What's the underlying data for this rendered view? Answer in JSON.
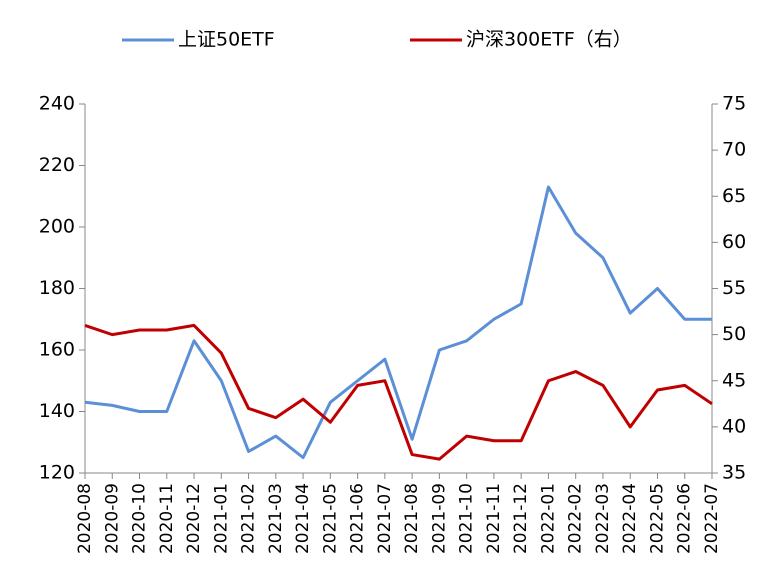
{
  "chart_data": {
    "type": "line",
    "categories": [
      "2020-08",
      "2020-09",
      "2020-10",
      "2020-11",
      "2020-12",
      "2021-01",
      "2021-02",
      "2021-03",
      "2021-04",
      "2021-05",
      "2021-06",
      "2021-07",
      "2021-08",
      "2021-09",
      "2021-10",
      "2021-11",
      "2021-12",
      "2022-01",
      "2022-02",
      "2022-03",
      "2022-04",
      "2022-05",
      "2022-06",
      "2022-07"
    ],
    "series": [
      {
        "name": "上证50ETF",
        "color": "#5b8fd6",
        "values": [
          143,
          142,
          140,
          140,
          163,
          150,
          127,
          132,
          125,
          143,
          150,
          157,
          131,
          160,
          163,
          170,
          175,
          213,
          198,
          190,
          172,
          180,
          170,
          170
        ]
      },
      {
        "name": "沪深300ETF（右）",
        "color": "#c00000",
        "axis": "y2",
        "values": [
          51,
          50,
          50.5,
          50.5,
          51,
          48,
          42,
          41,
          43,
          40.5,
          44.5,
          45,
          37,
          36.5,
          39,
          38.5,
          38.5,
          45,
          46,
          44.5,
          40,
          44,
          44.5,
          42.5
        ]
      }
    ],
    "ylim": [
      120,
      240
    ],
    "yticks": [
      120,
      140,
      160,
      180,
      200,
      220,
      240
    ],
    "y2lim": [
      35,
      75
    ],
    "y2ticks": [
      35,
      40,
      45,
      50,
      55,
      60,
      65,
      70,
      75
    ],
    "legend": "top"
  }
}
